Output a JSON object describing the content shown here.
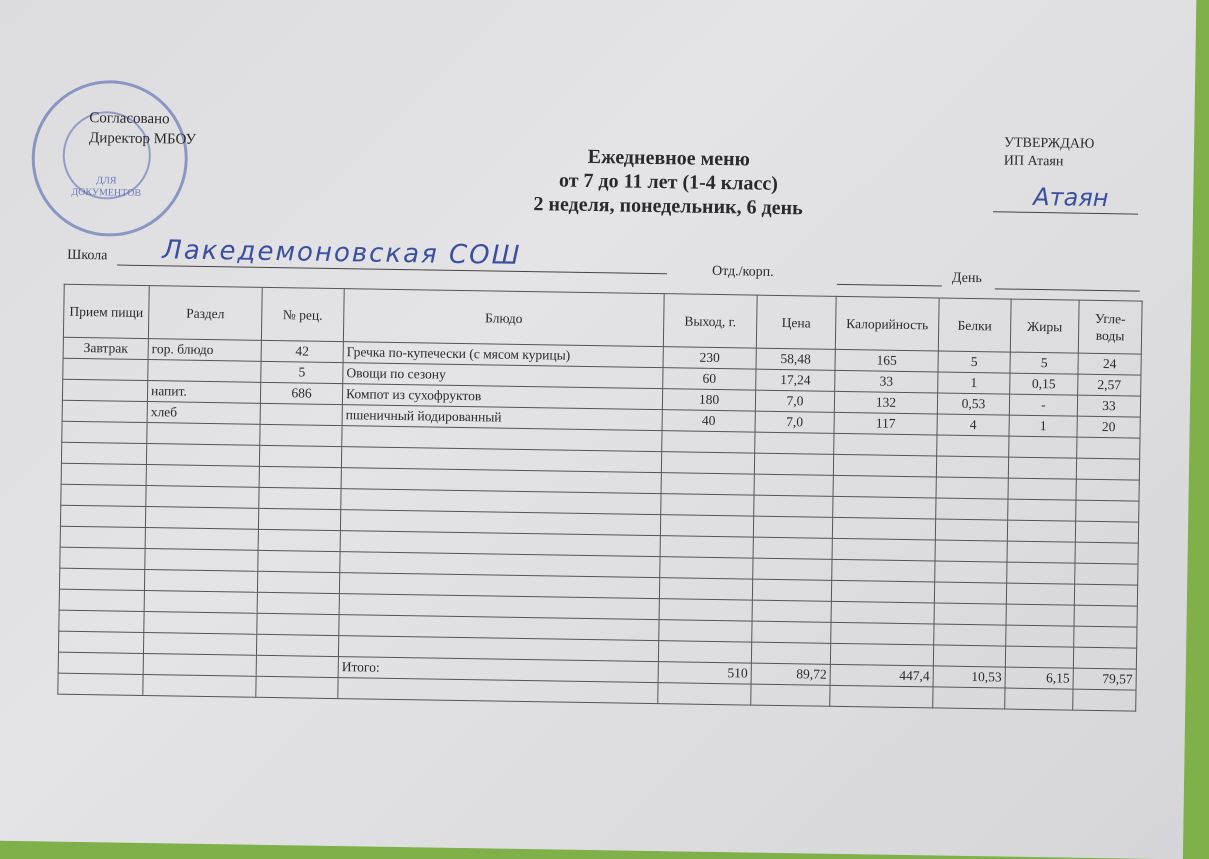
{
  "stamp": {
    "text": "ДЛЯ ДОКУМЕНТОВ"
  },
  "agreed": {
    "line1": "Согласовано",
    "line2": "Директор МБОУ"
  },
  "title": {
    "line1": "Ежедневное меню",
    "line2": "от 7 до 11 лет (1-4 класс)",
    "line3": "2 неделя, понедельник, 6 день"
  },
  "approved": {
    "line1": "УТВЕРЖДАЮ",
    "line2": "ИП Атаян",
    "signature": "Атаян"
  },
  "fields": {
    "school_label": "Школа",
    "school_value": "Лакедемоновская СОШ",
    "dept_label": "Отд./корп.",
    "day_label": "День"
  },
  "table": {
    "headers": [
      "Прием пищи",
      "Раздел",
      "№ рец.",
      "Блюдо",
      "Выход, г.",
      "Цена",
      "Калорийность",
      "Белки",
      "Жиры",
      "Угле-воды"
    ],
    "rows": [
      [
        "Завтрак",
        "гор. блюдо",
        "42",
        "Гречка по-купечески (с мясом курицы)",
        "230",
        "58,48",
        "165",
        "5",
        "5",
        "24"
      ],
      [
        "",
        "",
        "5",
        "Овощи по сезону",
        "60",
        "17,24",
        "33",
        "1",
        "0,15",
        "2,57"
      ],
      [
        "",
        "напит.",
        "686",
        "Компот из сухофруктов",
        "180",
        "7,0",
        "132",
        "0,53",
        "-",
        "33"
      ],
      [
        "",
        "хлеб",
        "",
        "пшеничный йодированный",
        "40",
        "7,0",
        "117",
        "4",
        "1",
        "20"
      ]
    ],
    "total": {
      "label": "Итого:",
      "values": [
        "510",
        "89,72",
        "447,4",
        "10,53",
        "6,15",
        "79,57"
      ]
    }
  }
}
